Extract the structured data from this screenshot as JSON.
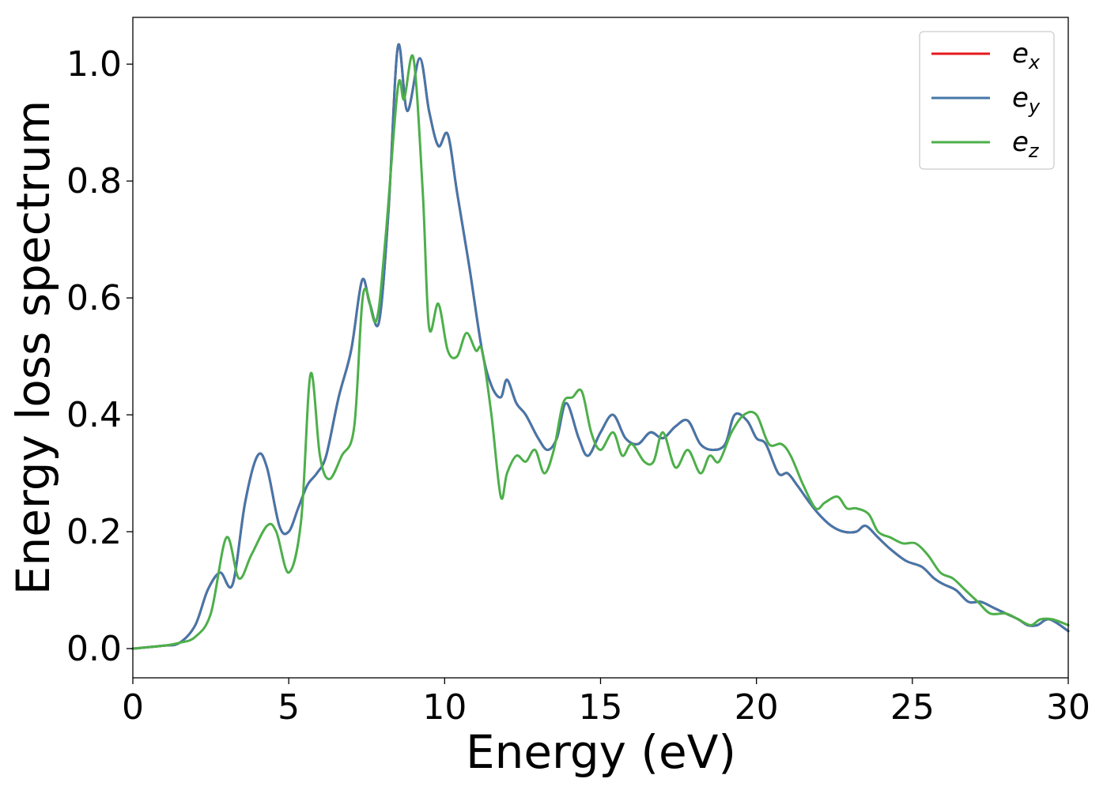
{
  "chart_data": {
    "type": "line",
    "xlabel": "Energy (eV)",
    "ylabel": "Energy loss spectrum",
    "xlim": [
      0,
      30
    ],
    "ylim": [
      -0.05,
      1.08
    ],
    "xticks": [
      0,
      5,
      10,
      15,
      20,
      25,
      30
    ],
    "xtick_labels": [
      "0",
      "5",
      "10",
      "15",
      "20",
      "25",
      "30"
    ],
    "yticks": [
      0.0,
      0.2,
      0.4,
      0.6,
      0.8,
      1.0
    ],
    "ytick_labels": [
      "0.0",
      "0.2",
      "0.4",
      "0.6",
      "0.8",
      "1.0"
    ],
    "grid": false,
    "legend_position": "top-right",
    "series": [
      {
        "name": "e_x",
        "label_base": "e",
        "label_sub": "x",
        "color": "#e41a1c",
        "x": [
          0,
          1,
          1.5,
          2,
          2.4,
          2.8,
          3.2,
          3.6,
          4.0,
          4.3,
          4.7,
          5.0,
          5.3,
          5.6,
          5.9,
          6.2,
          6.6,
          7.0,
          7.35,
          7.6,
          7.9,
          8.2,
          8.5,
          8.8,
          9.2,
          9.5,
          9.8,
          10.1,
          10.4,
          10.8,
          11.2,
          11.5,
          11.8,
          12.0,
          12.3,
          12.6,
          13.0,
          13.3,
          13.6,
          13.9,
          14.3,
          14.6,
          15.0,
          15.4,
          15.8,
          16.2,
          16.6,
          17.0,
          17.4,
          17.8,
          18.2,
          18.6,
          19.0,
          19.3,
          19.7,
          20.0,
          20.3,
          20.7,
          21.0,
          21.3,
          21.7,
          22.0,
          22.4,
          22.8,
          23.2,
          23.5,
          23.9,
          24.3,
          24.8,
          25.3,
          25.7,
          26.0,
          26.4,
          26.8,
          27.2,
          27.6,
          28.0,
          28.4,
          28.7,
          29.0,
          29.4,
          30.0
        ],
        "values": [
          0.0,
          0.005,
          0.01,
          0.04,
          0.1,
          0.13,
          0.11,
          0.25,
          0.33,
          0.31,
          0.21,
          0.2,
          0.24,
          0.28,
          0.3,
          0.33,
          0.43,
          0.51,
          0.63,
          0.59,
          0.56,
          0.75,
          1.03,
          0.92,
          1.01,
          0.92,
          0.86,
          0.88,
          0.78,
          0.65,
          0.51,
          0.45,
          0.43,
          0.46,
          0.42,
          0.4,
          0.36,
          0.34,
          0.36,
          0.42,
          0.36,
          0.33,
          0.37,
          0.4,
          0.36,
          0.35,
          0.37,
          0.36,
          0.38,
          0.39,
          0.35,
          0.34,
          0.35,
          0.4,
          0.39,
          0.36,
          0.35,
          0.3,
          0.3,
          0.28,
          0.25,
          0.23,
          0.21,
          0.2,
          0.2,
          0.21,
          0.19,
          0.17,
          0.15,
          0.14,
          0.12,
          0.11,
          0.1,
          0.08,
          0.08,
          0.07,
          0.06,
          0.05,
          0.04,
          0.04,
          0.05,
          0.03
        ]
      },
      {
        "name": "e_y",
        "label_base": "e",
        "label_sub": "y",
        "color": "#4477aa",
        "x": [
          0,
          1,
          1.5,
          2,
          2.4,
          2.8,
          3.2,
          3.6,
          4.0,
          4.3,
          4.7,
          5.0,
          5.3,
          5.6,
          5.9,
          6.2,
          6.6,
          7.0,
          7.35,
          7.6,
          7.9,
          8.2,
          8.5,
          8.8,
          9.2,
          9.5,
          9.8,
          10.1,
          10.4,
          10.8,
          11.2,
          11.5,
          11.8,
          12.0,
          12.3,
          12.6,
          13.0,
          13.3,
          13.6,
          13.9,
          14.3,
          14.6,
          15.0,
          15.4,
          15.8,
          16.2,
          16.6,
          17.0,
          17.4,
          17.8,
          18.2,
          18.6,
          19.0,
          19.3,
          19.7,
          20.0,
          20.3,
          20.7,
          21.0,
          21.3,
          21.7,
          22.0,
          22.4,
          22.8,
          23.2,
          23.5,
          23.9,
          24.3,
          24.8,
          25.3,
          25.7,
          26.0,
          26.4,
          26.8,
          27.2,
          27.6,
          28.0,
          28.4,
          28.7,
          29.0,
          29.4,
          30.0
        ],
        "values": [
          0.0,
          0.005,
          0.01,
          0.04,
          0.1,
          0.13,
          0.11,
          0.25,
          0.33,
          0.31,
          0.21,
          0.2,
          0.24,
          0.28,
          0.3,
          0.33,
          0.43,
          0.51,
          0.63,
          0.59,
          0.56,
          0.75,
          1.03,
          0.92,
          1.01,
          0.92,
          0.86,
          0.88,
          0.78,
          0.65,
          0.51,
          0.45,
          0.43,
          0.46,
          0.42,
          0.4,
          0.36,
          0.34,
          0.36,
          0.42,
          0.36,
          0.33,
          0.37,
          0.4,
          0.36,
          0.35,
          0.37,
          0.36,
          0.38,
          0.39,
          0.35,
          0.34,
          0.35,
          0.4,
          0.39,
          0.36,
          0.35,
          0.3,
          0.3,
          0.28,
          0.25,
          0.23,
          0.21,
          0.2,
          0.2,
          0.21,
          0.19,
          0.17,
          0.15,
          0.14,
          0.12,
          0.11,
          0.1,
          0.08,
          0.08,
          0.07,
          0.06,
          0.05,
          0.04,
          0.04,
          0.05,
          0.03
        ]
      },
      {
        "name": "e_z",
        "label_base": "e",
        "label_sub": "z",
        "color": "#4daf4a",
        "x": [
          0,
          1,
          1.5,
          2,
          2.5,
          3.0,
          3.4,
          3.8,
          4.3,
          4.6,
          5.0,
          5.4,
          5.7,
          6.0,
          6.3,
          6.7,
          7.1,
          7.4,
          7.8,
          8.1,
          8.5,
          8.7,
          9.0,
          9.3,
          9.5,
          9.8,
          10.1,
          10.4,
          10.7,
          11.0,
          11.2,
          11.5,
          11.8,
          12.0,
          12.3,
          12.6,
          12.9,
          13.2,
          13.5,
          13.8,
          14.1,
          14.4,
          14.7,
          15.0,
          15.4,
          15.7,
          16.0,
          16.4,
          16.7,
          17.0,
          17.4,
          17.8,
          18.2,
          18.5,
          18.8,
          19.2,
          19.6,
          20.0,
          20.4,
          20.8,
          21.1,
          21.5,
          21.9,
          22.2,
          22.6,
          22.9,
          23.2,
          23.6,
          23.9,
          24.3,
          24.7,
          25.1,
          25.5,
          25.9,
          26.3,
          26.7,
          27.1,
          27.5,
          28.0,
          28.4,
          28.8,
          29.1,
          29.5,
          30.0
        ],
        "values": [
          0.0,
          0.005,
          0.01,
          0.02,
          0.06,
          0.19,
          0.12,
          0.16,
          0.21,
          0.2,
          0.13,
          0.22,
          0.47,
          0.33,
          0.29,
          0.33,
          0.38,
          0.61,
          0.56,
          0.7,
          0.96,
          0.94,
          1.01,
          0.78,
          0.55,
          0.59,
          0.51,
          0.5,
          0.54,
          0.51,
          0.51,
          0.4,
          0.26,
          0.3,
          0.33,
          0.32,
          0.34,
          0.3,
          0.34,
          0.42,
          0.43,
          0.44,
          0.37,
          0.34,
          0.37,
          0.33,
          0.35,
          0.32,
          0.32,
          0.37,
          0.31,
          0.34,
          0.3,
          0.33,
          0.32,
          0.37,
          0.4,
          0.4,
          0.35,
          0.35,
          0.33,
          0.28,
          0.24,
          0.25,
          0.26,
          0.24,
          0.24,
          0.23,
          0.2,
          0.19,
          0.18,
          0.18,
          0.16,
          0.13,
          0.12,
          0.1,
          0.08,
          0.06,
          0.06,
          0.05,
          0.04,
          0.05,
          0.05,
          0.04
        ]
      }
    ]
  }
}
